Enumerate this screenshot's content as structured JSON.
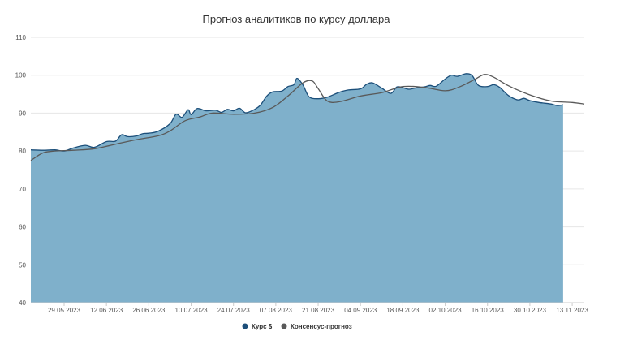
{
  "chart_data": {
    "type": "area",
    "title": "Прогноз аналитиков по курсу доллара",
    "xlabel": "",
    "ylabel": "",
    "ylim": [
      40,
      110
    ],
    "y_ticks": [
      40,
      50,
      60,
      70,
      80,
      90,
      100,
      110
    ],
    "x_range": [
      "2023-05-18",
      "2023-11-17"
    ],
    "x_tick_labels": [
      "29.05.2023",
      "12.06.2023",
      "26.06.2023",
      "10.07.2023",
      "24.07.2023",
      "07.08.2023",
      "21.08.2023",
      "04.09.2023",
      "18.09.2023",
      "02.10.2023",
      "16.10.2023",
      "30.10.2023",
      "13.11.2023"
    ],
    "x_tick_dates": [
      "2023-05-29",
      "2023-06-12",
      "2023-06-26",
      "2023-07-10",
      "2023-07-24",
      "2023-08-07",
      "2023-08-21",
      "2023-09-04",
      "2023-09-18",
      "2023-10-02",
      "2023-10-16",
      "2023-10-30",
      "2023-11-13"
    ],
    "grid": true,
    "legend_position": "bottom-center",
    "series": [
      {
        "name": "Курс $",
        "kind": "area",
        "color": "#7fb0cb",
        "line_color": "#1c4f7a",
        "points": [
          [
            "2023-05-18",
            80.3
          ],
          [
            "2023-05-22",
            80.2
          ],
          [
            "2023-05-26",
            80.3
          ],
          [
            "2023-05-29",
            80.0
          ],
          [
            "2023-06-01",
            80.8
          ],
          [
            "2023-06-05",
            81.5
          ],
          [
            "2023-06-08",
            81.0
          ],
          [
            "2023-06-12",
            82.5
          ],
          [
            "2023-06-15",
            82.6
          ],
          [
            "2023-06-17",
            84.3
          ],
          [
            "2023-06-19",
            83.8
          ],
          [
            "2023-06-22",
            84.0
          ],
          [
            "2023-06-24",
            84.6
          ],
          [
            "2023-06-26",
            84.7
          ],
          [
            "2023-06-29",
            85.2
          ],
          [
            "2023-07-03",
            87.2
          ],
          [
            "2023-07-05",
            89.7
          ],
          [
            "2023-07-07",
            88.9
          ],
          [
            "2023-07-09",
            90.9
          ],
          [
            "2023-07-10",
            89.6
          ],
          [
            "2023-07-12",
            91.2
          ],
          [
            "2023-07-15",
            90.6
          ],
          [
            "2023-07-18",
            90.8
          ],
          [
            "2023-07-20",
            90.2
          ],
          [
            "2023-07-22",
            91.0
          ],
          [
            "2023-07-24",
            90.6
          ],
          [
            "2023-07-26",
            91.3
          ],
          [
            "2023-07-28",
            90.1
          ],
          [
            "2023-07-31",
            91.0
          ],
          [
            "2023-08-02",
            92.2
          ],
          [
            "2023-08-04",
            94.5
          ],
          [
            "2023-08-06",
            95.6
          ],
          [
            "2023-08-09",
            95.8
          ],
          [
            "2023-08-11",
            97.0
          ],
          [
            "2023-08-13",
            97.5
          ],
          [
            "2023-08-14",
            99.2
          ],
          [
            "2023-08-16",
            97.4
          ],
          [
            "2023-08-18",
            94.3
          ],
          [
            "2023-08-21",
            93.8
          ],
          [
            "2023-08-24",
            94.2
          ],
          [
            "2023-08-28",
            95.5
          ],
          [
            "2023-08-31",
            96.1
          ],
          [
            "2023-09-04",
            96.4
          ],
          [
            "2023-09-06",
            97.6
          ],
          [
            "2023-09-08",
            98.0
          ],
          [
            "2023-09-11",
            96.6
          ],
          [
            "2023-09-14",
            95.2
          ],
          [
            "2023-09-16",
            96.9
          ],
          [
            "2023-09-18",
            96.7
          ],
          [
            "2023-09-20",
            96.3
          ],
          [
            "2023-09-22",
            96.6
          ],
          [
            "2023-09-25",
            96.9
          ],
          [
            "2023-09-27",
            97.3
          ],
          [
            "2023-09-29",
            97.1
          ],
          [
            "2023-10-02",
            99.0
          ],
          [
            "2023-10-04",
            100.0
          ],
          [
            "2023-10-06",
            99.7
          ],
          [
            "2023-10-09",
            100.4
          ],
          [
            "2023-10-11",
            99.8
          ],
          [
            "2023-10-13",
            97.3
          ],
          [
            "2023-10-16",
            97.0
          ],
          [
            "2023-10-18",
            97.5
          ],
          [
            "2023-10-20",
            96.8
          ],
          [
            "2023-10-23",
            94.6
          ],
          [
            "2023-10-26",
            93.5
          ],
          [
            "2023-10-28",
            93.9
          ],
          [
            "2023-10-30",
            93.3
          ],
          [
            "2023-11-02",
            92.8
          ],
          [
            "2023-11-06",
            92.4
          ],
          [
            "2023-11-08",
            92.0
          ],
          [
            "2023-11-10",
            92.2
          ]
        ]
      },
      {
        "name": "Консенсус-прогноз",
        "kind": "line",
        "color": "#595959",
        "points": [
          [
            "2023-05-18",
            77.5
          ],
          [
            "2023-05-22",
            79.5
          ],
          [
            "2023-05-26",
            80.0
          ],
          [
            "2023-06-01",
            80.2
          ],
          [
            "2023-06-08",
            80.6
          ],
          [
            "2023-06-15",
            81.8
          ],
          [
            "2023-06-22",
            83.0
          ],
          [
            "2023-06-29",
            84.0
          ],
          [
            "2023-07-03",
            85.3
          ],
          [
            "2023-07-08",
            88.0
          ],
          [
            "2023-07-13",
            89.0
          ],
          [
            "2023-07-17",
            90.0
          ],
          [
            "2023-07-24",
            89.7
          ],
          [
            "2023-07-31",
            90.0
          ],
          [
            "2023-08-06",
            91.5
          ],
          [
            "2023-08-11",
            94.5
          ],
          [
            "2023-08-16",
            98.0
          ],
          [
            "2023-08-19",
            98.5
          ],
          [
            "2023-08-21",
            96.5
          ],
          [
            "2023-08-24",
            93.2
          ],
          [
            "2023-08-28",
            93.0
          ],
          [
            "2023-09-04",
            94.5
          ],
          [
            "2023-09-11",
            95.4
          ],
          [
            "2023-09-18",
            97.0
          ],
          [
            "2023-09-25",
            96.8
          ],
          [
            "2023-10-02",
            95.9
          ],
          [
            "2023-10-07",
            97.0
          ],
          [
            "2023-10-12",
            99.0
          ],
          [
            "2023-10-15",
            100.2
          ],
          [
            "2023-10-18",
            99.5
          ],
          [
            "2023-10-23",
            97.2
          ],
          [
            "2023-10-30",
            94.8
          ],
          [
            "2023-11-06",
            93.2
          ],
          [
            "2023-11-13",
            92.8
          ],
          [
            "2023-11-17",
            92.4
          ]
        ]
      }
    ]
  }
}
